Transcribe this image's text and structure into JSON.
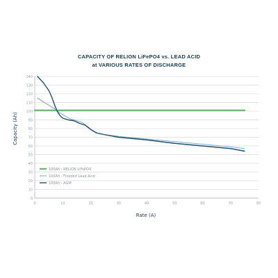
{
  "chart_data": {
    "type": "line",
    "title": "CAPACITY OF RELION LiFePO4 vs. LEAD ACID",
    "subtitle": "at VARIOUS RATES OF DISCHARGE",
    "xlabel": "Rate (A)",
    "ylabel": "Capacity (Ah)",
    "xlim": [
      0,
      80
    ],
    "ylim": [
      0,
      140
    ],
    "xticks": [
      0,
      10,
      20,
      30,
      40,
      50,
      60,
      70,
      80
    ],
    "yticks": [
      0,
      10,
      20,
      30,
      40,
      50,
      60,
      70,
      80,
      90,
      100,
      110,
      120,
      130,
      140
    ],
    "grid": "horizontal",
    "legend_position": "bottom-left",
    "series": [
      {
        "name": "100Ah - RELiON LiFePO4",
        "color": "#6db56d",
        "x": [
          0,
          75
        ],
        "y": [
          101,
          101
        ]
      },
      {
        "name": "100Ah - Flooded Lead Acid",
        "color": "#7fb0c8",
        "x": [
          1,
          3,
          5,
          7,
          9,
          11,
          13,
          15,
          17,
          19,
          21,
          23,
          25,
          30,
          40,
          50,
          60,
          70,
          75
        ],
        "y": [
          115,
          111,
          107,
          103,
          98,
          94,
          91,
          89,
          87,
          82,
          77,
          74,
          73,
          71,
          68,
          65,
          62,
          59,
          57
        ]
      },
      {
        "name": "100Ah - AGM",
        "color": "#1f4e6e",
        "x": [
          1,
          3,
          5,
          6,
          7,
          8,
          9,
          10,
          12,
          14,
          16,
          18,
          20,
          22,
          25,
          30,
          40,
          50,
          60,
          70,
          75
        ],
        "y": [
          140,
          133,
          124,
          117,
          108,
          100,
          95,
          92,
          90,
          89,
          86,
          84,
          79,
          75,
          73,
          70,
          67,
          63,
          60,
          57,
          54
        ]
      }
    ]
  }
}
